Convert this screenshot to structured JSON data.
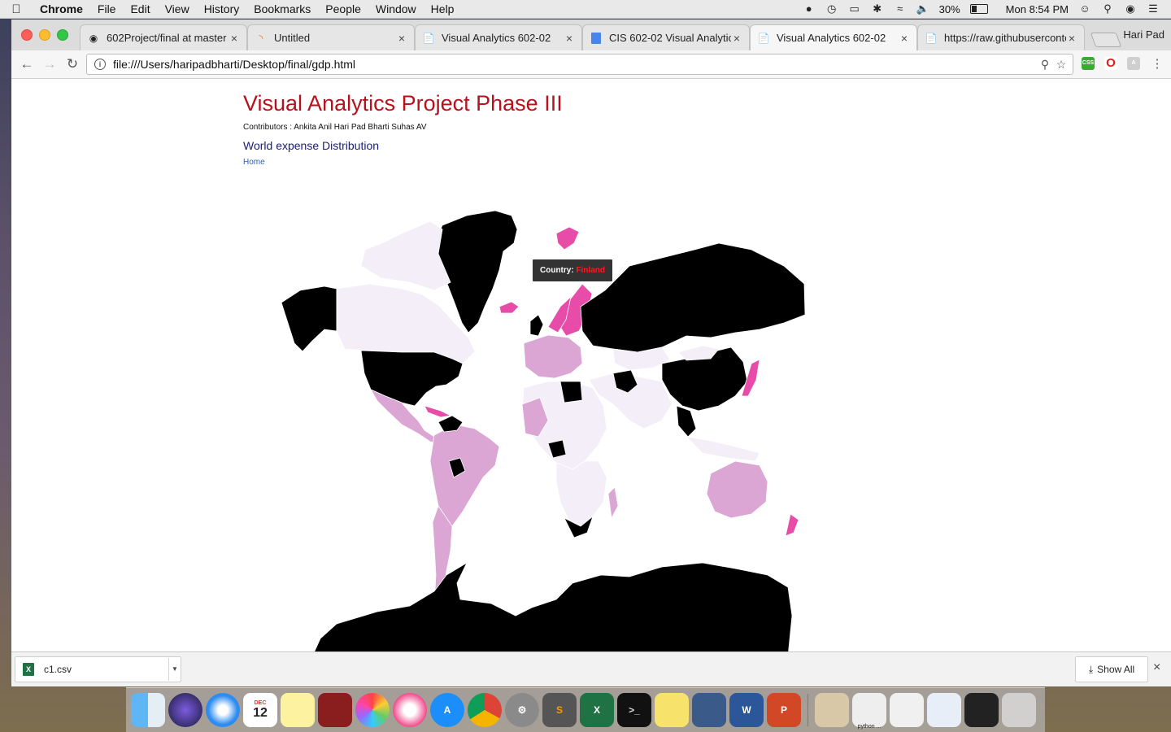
{
  "menubar": {
    "app": "Chrome",
    "items": [
      "File",
      "Edit",
      "View",
      "History",
      "Bookmarks",
      "People",
      "Window",
      "Help"
    ],
    "battery": "30%",
    "clock": "Mon 8:54 PM"
  },
  "tabs": [
    {
      "title": "602Project/final at master",
      "icon": "github-icon"
    },
    {
      "title": "Untitled",
      "icon": "loading-icon"
    },
    {
      "title": "Visual Analytics 602-02",
      "icon": "page-icon"
    },
    {
      "title": "CIS 602-02 Visual Analytic",
      "icon": "docs-icon"
    },
    {
      "title": "Visual Analytics 602-02",
      "icon": "page-icon"
    },
    {
      "title": "https://raw.githubuserconte",
      "icon": "page-icon"
    }
  ],
  "profile_name": "Hari Pad",
  "address_bar": {
    "url": "file:///Users/haripadbharti/Desktop/final/gdp.html"
  },
  "page": {
    "title": "Visual Analytics Project Phase III",
    "contributors": "Contributors : Ankita Anil Hari Pad Bharti Suhas AV",
    "subtitle": "World expense Distribution",
    "home_link": "Home"
  },
  "map": {
    "colors": {
      "black": "#000000",
      "light": "#f3eef7",
      "mid": "#dba6d4",
      "hot": "#e64ca8"
    }
  },
  "tooltip": {
    "label": "Country: ",
    "value": "Finland"
  },
  "download_shelf": {
    "file_name": "c1.csv",
    "show_all": "Show All"
  },
  "dock": {
    "calendar_month": "DEC",
    "calendar_day": "12",
    "python_label": "python ..."
  }
}
